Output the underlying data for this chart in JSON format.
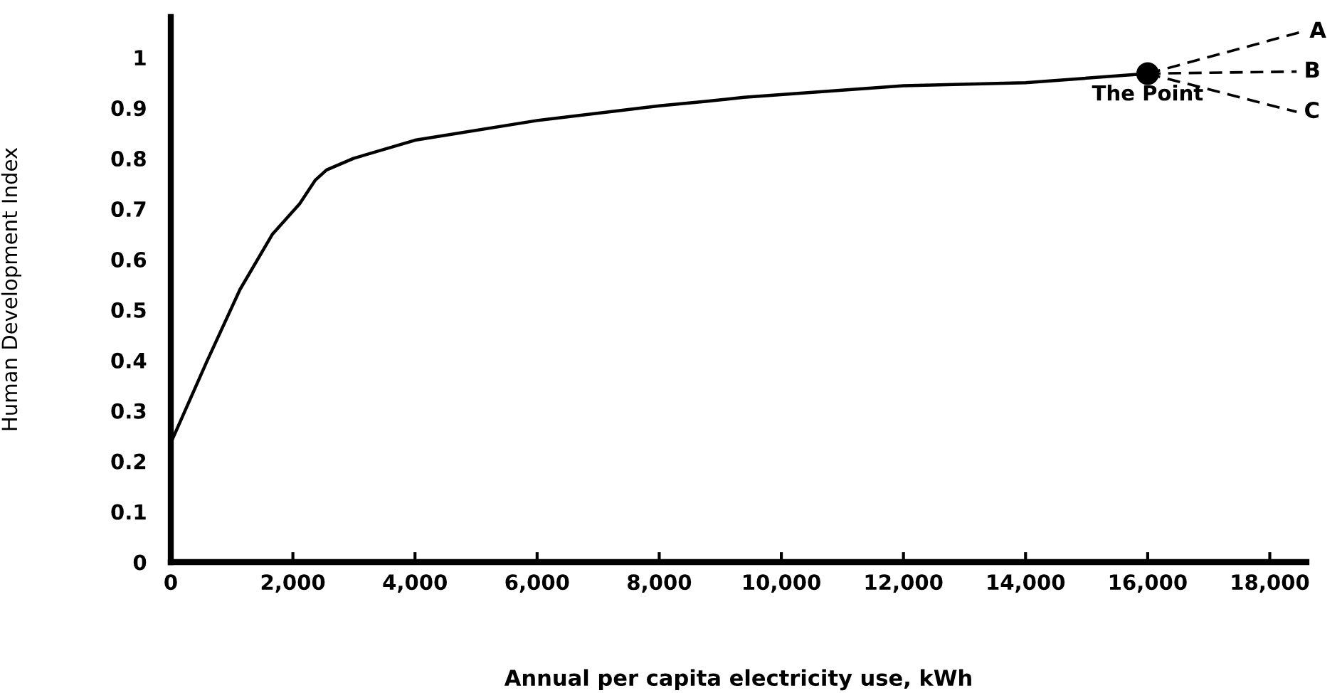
{
  "chart_data": {
    "type": "line",
    "xlabel": "Annual per capita electricity use, kWh",
    "ylabel": "Human Development Index",
    "series": [
      {
        "color": "#000000",
        "line_style": "solid",
        "x": [
          0,
          600,
          1133,
          1667,
          2110,
          2368,
          2551,
          2993,
          4000,
          6000,
          8000,
          8760,
          9390,
          12000,
          14000,
          16000
        ],
        "values": [
          0.236,
          0.4,
          0.54,
          0.65,
          0.71,
          0.757,
          0.777,
          0.8,
          0.836,
          0.875,
          0.904,
          0.913,
          0.921,
          0.944,
          0.95,
          0.968
        ]
      },
      {
        "type": "line",
        "name": "A",
        "color": "#000000",
        "line_style": "dashed",
        "x": [
          16000,
          18530
        ],
        "values": [
          0.968,
          1.051
        ]
      },
      {
        "type": "line",
        "name": "B",
        "color": "#000000",
        "line_style": "dashed",
        "x": [
          16000,
          18440
        ],
        "values": [
          0.968,
          0.972
        ]
      },
      {
        "type": "line",
        "name": "C",
        "color": "#000000",
        "line_style": "dashed",
        "x": [
          16000,
          18440
        ],
        "values": [
          0.968,
          0.892
        ]
      },
      {
        "type": "scatter",
        "name": "The Point",
        "color": "#000000",
        "marker": "circle",
        "x": [
          16000
        ],
        "values": [
          0.968
        ]
      }
    ],
    "xlim": [
      0,
      18600
    ],
    "ylim": [
      0,
      1.08
    ],
    "xticks": [
      0,
      {
        "value": 2000,
        "label": "2,000"
      },
      {
        "value": 4000,
        "label": "4,000"
      },
      {
        "value": 6000,
        "label": "6,000"
      },
      {
        "value": 8000,
        "label": "8,000"
      },
      {
        "value": 10000,
        "label": "10,000"
      },
      {
        "value": 12000,
        "label": "12,000"
      },
      {
        "value": 14000,
        "label": "14,000"
      },
      {
        "value": 16000,
        "label": "16,000"
      },
      {
        "value": 18000,
        "label": "18,000"
      }
    ],
    "yticks": [
      0,
      0.1,
      0.2,
      0.3,
      0.4,
      0.5,
      0.6,
      0.7,
      0.8,
      0.9,
      1
    ],
    "grid": false,
    "legend": false
  }
}
